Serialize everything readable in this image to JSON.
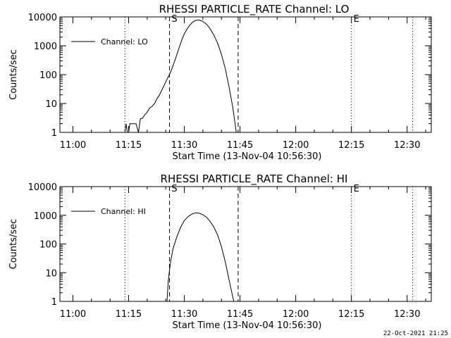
{
  "footer": {
    "timestamp": "22-Oct-2021 21:25"
  },
  "chart_data": [
    {
      "type": "line",
      "title": "RHESSI PARTICLE_RATE Channel: LO",
      "xlabel": "Start Time (13-Nov-04 10:56:30)",
      "ylabel": "Counts/sec",
      "yscale": "log",
      "ylim": [
        1,
        10000
      ],
      "xlim": [
        "10:56:30",
        "12:36:30"
      ],
      "x_ticks": [
        "11:00",
        "11:15",
        "11:30",
        "11:45",
        "12:00",
        "12:15",
        "12:30"
      ],
      "y_ticks": [
        "1",
        "10",
        "100",
        "1000",
        "10000"
      ],
      "legend": {
        "position": "top-left",
        "entries": [
          "Channel: LO"
        ]
      },
      "markers": [
        {
          "label": "",
          "time": "11:14:00",
          "style": "dotted"
        },
        {
          "label": "S",
          "time": "11:26:00",
          "style": "dashed"
        },
        {
          "label": "",
          "time": "11:44:30",
          "style": "dashed"
        },
        {
          "label": "E",
          "time": "12:15:00",
          "style": "dotted"
        },
        {
          "label": "",
          "time": "12:31:30",
          "style": "dotted"
        }
      ],
      "series": [
        {
          "name": "Channel: LO",
          "x": [
            "11:14:00",
            "11:14:20",
            "11:14:40",
            "11:15:00",
            "11:15:20",
            "11:16:00",
            "11:17:00",
            "11:17:40",
            "11:18:10",
            "11:18:40",
            "11:19:20",
            "11:20:00",
            "11:20:40",
            "11:21:20",
            "11:22:00",
            "11:22:40",
            "11:23:20",
            "11:24:00",
            "11:24:40",
            "11:25:20",
            "11:26:00",
            "11:26:40",
            "11:27:20",
            "11:28:00",
            "11:28:40",
            "11:29:20",
            "11:30:00",
            "11:31:00",
            "11:32:00",
            "11:33:00",
            "11:34:00",
            "11:35:00",
            "11:36:00",
            "11:37:00",
            "11:38:00",
            "11:39:00",
            "11:40:00",
            "11:41:00",
            "11:42:00",
            "11:43:00",
            "11:43:40",
            "11:44:00"
          ],
          "y": [
            1,
            2,
            1,
            1,
            2,
            2,
            2,
            1,
            3,
            3,
            4,
            5,
            7,
            8,
            10,
            15,
            20,
            30,
            45,
            70,
            100,
            160,
            280,
            500,
            900,
            1600,
            2600,
            4300,
            6200,
            7600,
            7800,
            7000,
            5500,
            3800,
            2300,
            1200,
            500,
            170,
            40,
            8,
            2,
            1
          ]
        }
      ]
    },
    {
      "type": "line",
      "title": "RHESSI PARTICLE_RATE Channel: HI",
      "xlabel": "Start Time (13-Nov-04 10:56:30)",
      "ylabel": "Counts/sec",
      "yscale": "log",
      "ylim": [
        1,
        10000
      ],
      "xlim": [
        "10:56:30",
        "12:36:30"
      ],
      "x_ticks": [
        "11:00",
        "11:15",
        "11:30",
        "11:45",
        "12:00",
        "12:15",
        "12:30"
      ],
      "y_ticks": [
        "1",
        "10",
        "100",
        "1000",
        "10000"
      ],
      "legend": {
        "position": "top-left",
        "entries": [
          "Channel: HI"
        ]
      },
      "markers": [
        {
          "label": "",
          "time": "11:14:00",
          "style": "dotted"
        },
        {
          "label": "S",
          "time": "11:26:00",
          "style": "dashed"
        },
        {
          "label": "",
          "time": "11:44:30",
          "style": "dashed"
        },
        {
          "label": "E",
          "time": "12:15:00",
          "style": "dotted"
        },
        {
          "label": "",
          "time": "12:31:30",
          "style": "dotted"
        }
      ],
      "series": [
        {
          "name": "Channel: HI",
          "x": [
            "11:25:20",
            "11:25:40",
            "11:26:00",
            "11:26:20",
            "11:27:00",
            "11:28:00",
            "11:29:00",
            "11:30:00",
            "11:31:00",
            "11:32:00",
            "11:33:00",
            "11:34:00",
            "11:35:00",
            "11:36:00",
            "11:37:00",
            "11:38:00",
            "11:39:00",
            "11:40:00",
            "11:41:00",
            "11:42:00",
            "11:43:00",
            "11:43:20"
          ],
          "y": [
            1,
            5,
            12,
            25,
            70,
            180,
            380,
            650,
            900,
            1100,
            1220,
            1180,
            1050,
            850,
            600,
            380,
            200,
            80,
            25,
            6,
            1.5,
            1
          ]
        }
      ]
    }
  ]
}
